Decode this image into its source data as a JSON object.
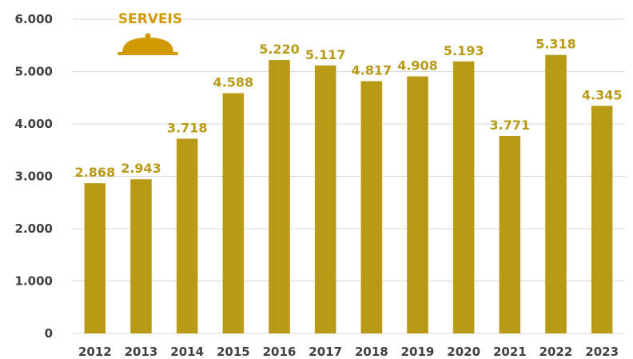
{
  "chart_data": {
    "type": "bar",
    "title": "SERVEIS",
    "title_icon": "cloche-icon",
    "categories": [
      "2012",
      "2013",
      "2014",
      "2015",
      "2016",
      "2017",
      "2018",
      "2019",
      "2020",
      "2021",
      "2022",
      "2023"
    ],
    "values": [
      2868,
      2943,
      3718,
      4588,
      5220,
      5117,
      4817,
      4908,
      5193,
      3771,
      5318,
      4345
    ],
    "value_labels": [
      "2.868",
      "2.943",
      "3.718",
      "4.588",
      "5.220",
      "5.117",
      "4.817",
      "4.908",
      "5.193",
      "3.771",
      "5.318",
      "4.345"
    ],
    "y_ticks": [
      0,
      1000,
      2000,
      3000,
      4000,
      5000,
      6000
    ],
    "y_tick_labels": [
      "0",
      "1.000",
      "2.000",
      "3.000",
      "4.000",
      "5.000",
      "6.000"
    ],
    "ylim": [
      0,
      6000
    ],
    "xlabel": "",
    "ylabel": "",
    "grid": true,
    "legend": "none",
    "colors": {
      "bar": "#B99A17",
      "label": "#B99A17",
      "title": "#D19A00",
      "icon": "#D19A00",
      "grid": "#D9D9D9",
      "axis_text": "#404040"
    }
  }
}
